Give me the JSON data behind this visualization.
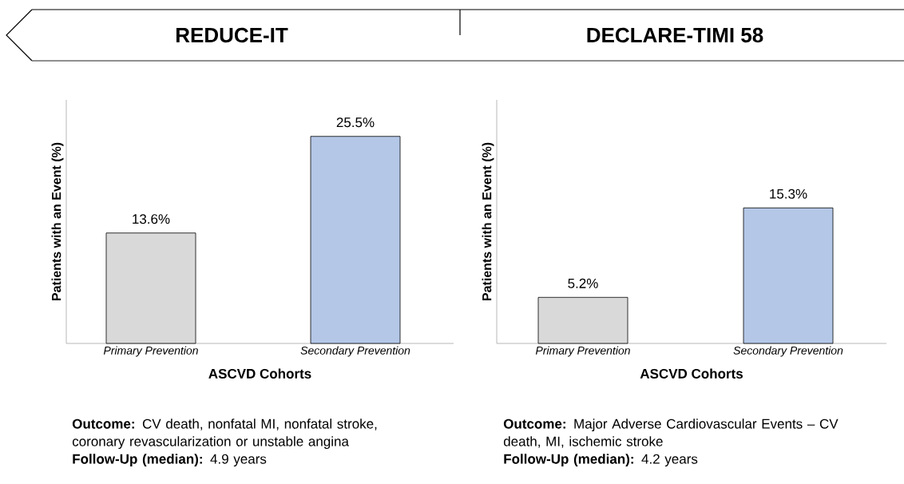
{
  "chart_data": [
    {
      "type": "bar",
      "title": "REDUCE-IT",
      "ylabel": "Patients with an Event (%)",
      "xlabel": "ASCVD Cohorts",
      "categories": [
        "Primary Prevention",
        "Secondary Prevention"
      ],
      "values": [
        13.6,
        25.5
      ],
      "colors": [
        "#d9d9d9",
        "#b4c7e7"
      ],
      "value_labels": [
        "13.6%",
        "25.5%"
      ],
      "ylim": [
        0,
        30
      ],
      "tick_labels": "x",
      "annotations": [
        "**Outcome:** CV death, nonfatal MI, nonfatal stroke, coronary revascularization or unstable angina",
        "**Follow-Up (median):** 4.9 years"
      ]
    },
    {
      "type": "bar",
      "title": "DECLARE-TIMI 58",
      "ylabel": "Patients with an Event (%)",
      "xlabel": "ASCVD Cohorts",
      "categories": [
        "Primary Prevention",
        "Secondary Prevention"
      ],
      "values": [
        5.2,
        15.3
      ],
      "colors": [
        "#d9d9d9",
        "#b4c7e7"
      ],
      "value_labels": [
        "5.2%",
        "15.3%"
      ],
      "ylim": [
        0,
        27.5
      ],
      "tick_labels": "x",
      "annotations": [
        "**Outcome:** Major Adverse Cardiovascular Events – CV death, MI, ischemic stroke",
        "**Follow-Up (median):** 4.2 years"
      ]
    }
  ]
}
